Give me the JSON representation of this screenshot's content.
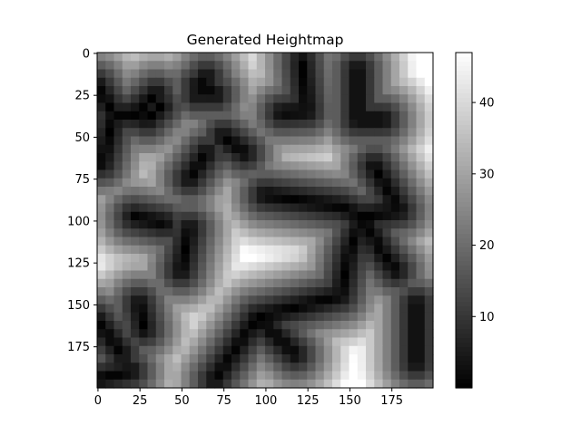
{
  "chart_data": [
    {
      "type": "heatmap",
      "title": "Generated Heightmap",
      "xlabel": "",
      "ylabel": "",
      "colormap": "gray",
      "grid": false,
      "x_range": [
        0,
        199
      ],
      "y_range": [
        0,
        199
      ],
      "y_inverted": true,
      "x_ticks": [
        0,
        25,
        50,
        75,
        100,
        125,
        150,
        175
      ],
      "y_ticks": [
        0,
        25,
        50,
        75,
        100,
        125,
        150,
        175
      ],
      "value_range": [
        0,
        47
      ],
      "ridges": [
        {
          "points": [
            [
              0,
              20
            ],
            [
              10,
              37
            ],
            [
              22,
              37
            ],
            [
              35,
              25
            ]
          ]
        },
        {
          "points": [
            [
              10,
              37
            ],
            [
              3,
              66
            ]
          ]
        },
        {
          "points": [
            [
              22,
              37
            ],
            [
              30,
              40
            ],
            [
              38,
              32
            ]
          ]
        },
        {
          "points": [
            [
              60,
              20
            ],
            [
              70,
              25
            ]
          ]
        },
        {
          "points": [
            [
              65,
              15
            ],
            [
              60,
              25
            ]
          ]
        },
        {
          "points": [
            [
              110,
              36
            ],
            [
              125,
              35
            ],
            [
              122,
              5
            ]
          ]
        },
        {
          "points": [
            [
              155,
              10
            ],
            [
              155,
              40
            ],
            [
              170,
              40
            ]
          ]
        },
        {
          "points": [
            [
              75,
              50
            ],
            [
              88,
              60
            ]
          ]
        },
        {
          "points": [
            [
              65,
              60
            ],
            [
              55,
              75
            ]
          ]
        },
        {
          "points": [
            [
              100,
              85
            ],
            [
              145,
              92
            ],
            [
              158,
              98
            ],
            [
              180,
              94
            ]
          ]
        },
        {
          "points": [
            [
              165,
              68
            ],
            [
              180,
              94
            ]
          ]
        },
        {
          "points": [
            [
              158,
              98
            ],
            [
              150,
              120
            ],
            [
              145,
              145
            ],
            [
              95,
              158
            ]
          ]
        },
        {
          "points": [
            [
              158,
              98
            ],
            [
              170,
              120
            ],
            [
              178,
              130
            ]
          ]
        },
        {
          "points": [
            [
              22,
              98
            ],
            [
              40,
              102
            ]
          ]
        },
        {
          "points": [
            [
              55,
              105
            ],
            [
              50,
              130
            ]
          ]
        },
        {
          "points": [
            [
              95,
              158
            ],
            [
              70,
              195
            ]
          ]
        },
        {
          "points": [
            [
              95,
              158
            ],
            [
              118,
              180
            ]
          ]
        },
        {
          "points": [
            [
              25,
              150
            ],
            [
              28,
              165
            ]
          ]
        },
        {
          "points": [
            [
              0,
              160
            ],
            [
              15,
              180
            ]
          ]
        },
        {
          "points": [
            [
              0,
              195
            ],
            [
              20,
              190
            ]
          ]
        },
        {
          "points": [
            [
              190,
              150
            ],
            [
              190,
              185
            ]
          ]
        }
      ]
    },
    {
      "type": "colorbar",
      "ticks": [
        10,
        20,
        30,
        40
      ],
      "value_range": [
        0,
        47
      ]
    }
  ]
}
